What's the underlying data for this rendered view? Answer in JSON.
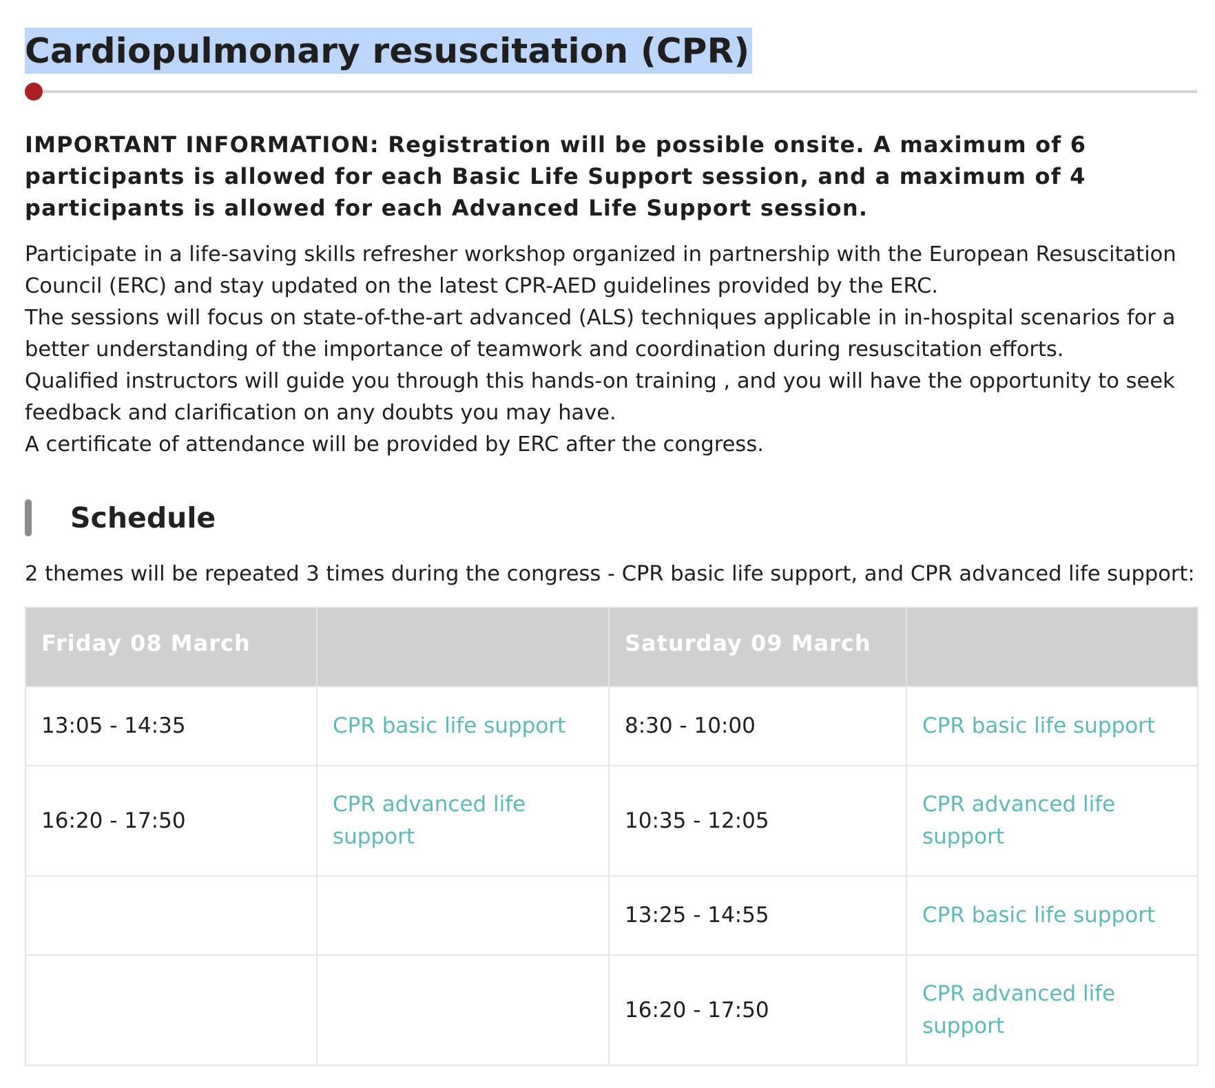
{
  "page": {
    "title": "Cardiopulmonary resuscitation (CPR)",
    "important_notice": "IMPORTANT INFORMATION: Registration will be possible onsite. A maximum of 6 participants is allowed for each Basic Life Support session, and a maximum of 4 participants is allowed for each Advanced Life Support session.",
    "intro": [
      "Participate in a life-saving skills refresher workshop organized in partnership with the European Resuscitation Council (ERC) and stay updated on the latest CPR-AED guidelines provided by the ERC.",
      "The sessions will focus on state-of-the-art advanced (ALS) techniques applicable in in-hospital scenarios for a better understanding of the importance of teamwork and coordination during resuscitation efforts.",
      "Qualified instructors will guide you through this hands-on training , and you will have the opportunity to seek feedback and clarification on any doubts you may have.",
      "A certificate of attendance will be provided by ERC after the congress."
    ]
  },
  "schedule": {
    "heading": "Schedule",
    "description": "2 themes will be repeated 3 times during the congress - CPR basic life support, and CPR advanced life support:",
    "headers": [
      "Friday 08 March",
      "",
      "Saturday 09 March",
      ""
    ],
    "rows": [
      {
        "friday_time": "13:05 - 14:35",
        "friday_session": "CPR basic life support",
        "saturday_time": "8:30 - 10:00",
        "saturday_session": "CPR basic life support"
      },
      {
        "friday_time": "16:20 - 17:50",
        "friday_session": "CPR advanced life support",
        "saturday_time": "10:35 - 12:05",
        "saturday_session": "CPR advanced life support"
      },
      {
        "friday_time": "",
        "friday_session": "",
        "saturday_time": "13:25 - 14:55",
        "saturday_session": "CPR basic life support"
      },
      {
        "friday_time": "",
        "friday_session": "",
        "saturday_time": "16:20 - 17:50",
        "saturday_session": "CPR advanced life support"
      }
    ]
  },
  "colors": {
    "title_highlight": "#bcd6fb",
    "accent_dot": "#ad1f23",
    "link": "#5bbbb9",
    "table_header_bg": "#d0d0d0",
    "section_bar": "#8b8b8b"
  }
}
